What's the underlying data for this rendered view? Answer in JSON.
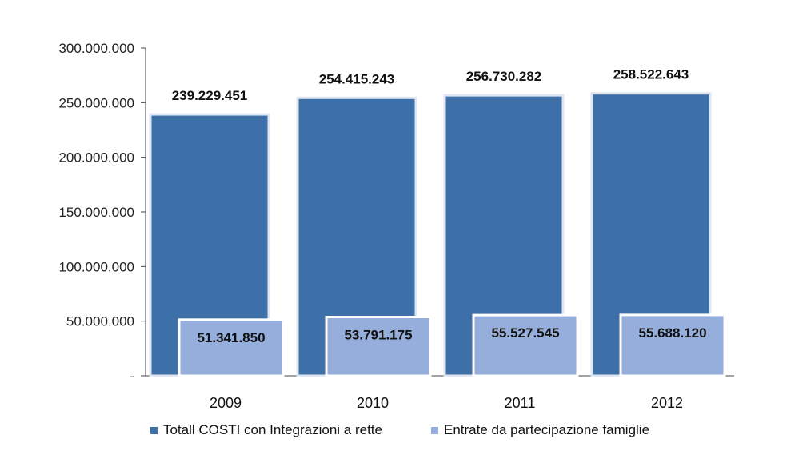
{
  "chart_data": {
    "type": "bar",
    "categories": [
      "2009",
      "2010",
      "2011",
      "2012"
    ],
    "series": [
      {
        "name": "Totall COSTI  con Integrazioni a rette",
        "values": [
          239229451,
          254415243,
          256730282,
          258522643
        ],
        "labels": [
          "239.229.451",
          "254.415.243",
          "256.730.282",
          "258.522.643"
        ],
        "color": "#3d6fa8"
      },
      {
        "name": "Entrate da partecipazione famiglie",
        "values": [
          51341850,
          53791175,
          55527545,
          55688120
        ],
        "labels": [
          "51.341.850",
          "53.791.175",
          "55.527.545",
          "55.688.120"
        ],
        "color": "#95aedb"
      }
    ],
    "ylim": [
      0,
      300000000
    ],
    "yticks": [
      0,
      50000000,
      100000000,
      150000000,
      200000000,
      250000000,
      300000000
    ],
    "ytick_labels": [
      "-",
      "50.000.000",
      "100.000.000",
      "150.000.000",
      "200.000.000",
      "250.000.000",
      "300.000.000"
    ],
    "grid": false,
    "legend_position": "bottom",
    "title": "",
    "xlabel": "",
    "ylabel": ""
  }
}
